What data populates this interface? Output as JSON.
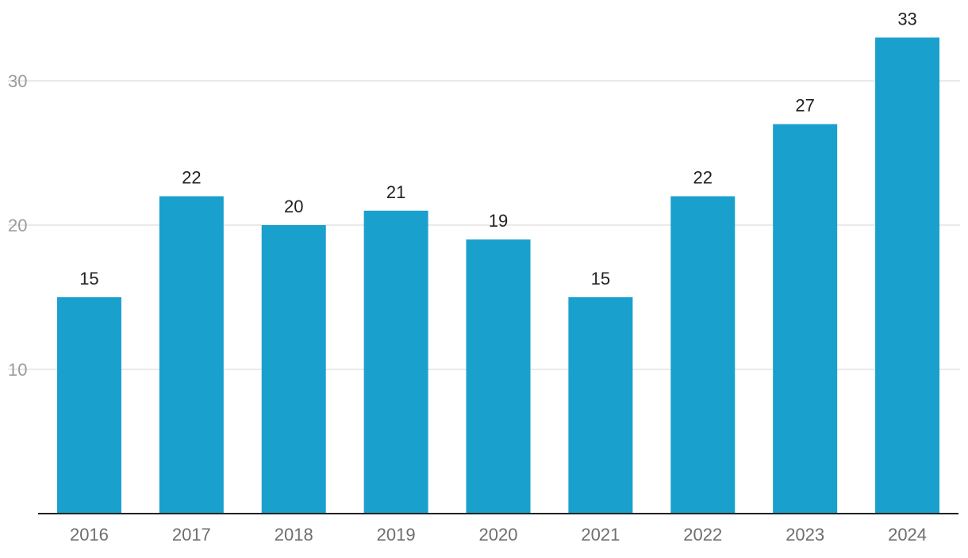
{
  "chart_data": {
    "type": "bar",
    "title": "",
    "xlabel": "",
    "ylabel": "",
    "categories": [
      "2016",
      "2017",
      "2018",
      "2019",
      "2020",
      "2021",
      "2022",
      "2023",
      "2024"
    ],
    "values": [
      15,
      22,
      20,
      21,
      19,
      15,
      22,
      27,
      33
    ],
    "ylim": [
      0,
      33
    ],
    "yticks": [
      10,
      20,
      30
    ],
    "grid": true,
    "legend": "none",
    "bar_color": "#1aa0cd",
    "data_labels": true
  }
}
